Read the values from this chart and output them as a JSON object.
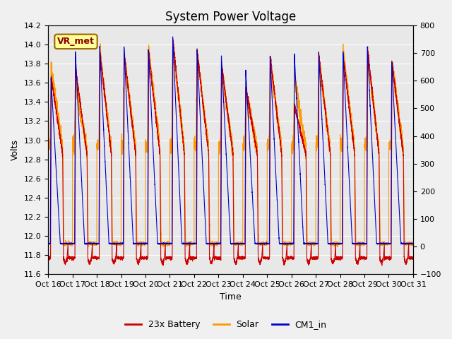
{
  "title": "System Power Voltage",
  "xlabel": "Time",
  "ylabel": "Volts",
  "xlim": [
    0,
    15
  ],
  "ylim_left": [
    11.6,
    14.2
  ],
  "ylim_right": [
    -100,
    800
  ],
  "yticks_left": [
    11.6,
    11.8,
    12.0,
    12.2,
    12.4,
    12.6,
    12.8,
    13.0,
    13.2,
    13.4,
    13.6,
    13.8,
    14.0,
    14.2
  ],
  "yticks_right": [
    -100,
    0,
    100,
    200,
    300,
    400,
    500,
    600,
    700,
    800
  ],
  "xtick_labels": [
    "Oct 16",
    "Oct 17",
    "Oct 18",
    "Oct 19",
    "Oct 20",
    "Oct 21",
    "Oct 22",
    "Oct 23",
    "Oct 24",
    "Oct 25",
    "Oct 26",
    "Oct 27",
    "Oct 28",
    "Oct 29",
    "Oct 30",
    "Oct 31"
  ],
  "legend_labels": [
    "23x Battery",
    "Solar",
    "CM1_in"
  ],
  "battery_color": "#cc0000",
  "solar_color": "#ff9900",
  "cm1_color": "#0000cc",
  "annotation_text": "VR_met",
  "annotation_box_facecolor": "#ffff99",
  "annotation_box_edgecolor": "#996600",
  "plot_bg_color": "#e8e8e8",
  "fig_bg_color": "#f0f0f0",
  "grid_color": "#ffffff",
  "title_fontsize": 12,
  "axis_label_fontsize": 9,
  "tick_fontsize": 8,
  "legend_fontsize": 9,
  "line_width": 0.8,
  "n_cycles": 15,
  "pts_per_cycle": 400
}
